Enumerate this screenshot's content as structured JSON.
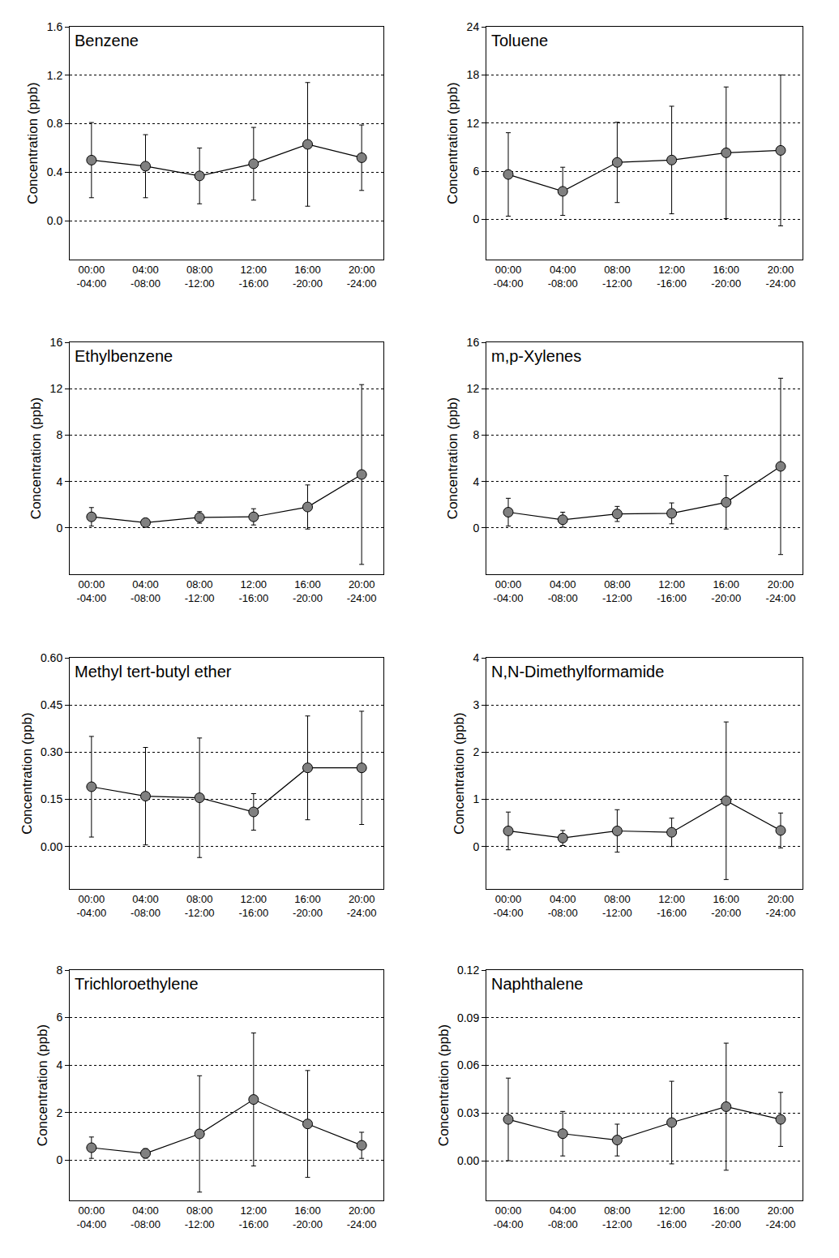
{
  "chart_data": [
    {
      "type": "line",
      "title": "Benzene",
      "y_label": "Concentration (ppb)",
      "categories": [
        "00:00\n-04:00",
        "04:00\n-08:00",
        "08:00\n-12:00",
        "12:00\n-16:00",
        "16:00\n-20:00",
        "20:00\n-24:00"
      ],
      "values": [
        0.5,
        0.45,
        0.37,
        0.47,
        0.63,
        0.52
      ],
      "errors": [
        0.31,
        0.26,
        0.23,
        0.3,
        0.51,
        0.27
      ],
      "ylim": [
        -0.32,
        1.6
      ],
      "yticks": [
        {
          "value": 0,
          "label": "0.0"
        },
        0.4,
        0.8,
        1.2,
        1.6
      ],
      "grid": true,
      "color": "#808080",
      "marker": "circle"
    },
    {
      "type": "line",
      "title": "Toluene",
      "y_label": "Concentration (ppb)",
      "categories": [
        "00:00\n-04:00",
        "04:00\n-08:00",
        "08:00\n-12:00",
        "12:00\n-16:00",
        "16:00\n-20:00",
        "20:00\n-24:00"
      ],
      "values": [
        5.6,
        3.5,
        7.1,
        7.4,
        8.3,
        8.6
      ],
      "errors": [
        5.2,
        3.0,
        5.0,
        6.7,
        8.2,
        9.4
      ],
      "ylim": [
        -5,
        24
      ],
      "yticks": [
        0,
        6,
        12,
        18,
        24
      ],
      "grid": true,
      "color": "#808080",
      "marker": "circle"
    },
    {
      "type": "line",
      "title": "Ethylbenzene",
      "y_label": "Concentration (ppb)",
      "categories": [
        "00:00\n-04:00",
        "04:00\n-08:00",
        "08:00\n-12:00",
        "12:00\n-16:00",
        "16:00\n-20:00",
        "20:00\n-24:00"
      ],
      "values": [
        0.95,
        0.45,
        0.9,
        0.95,
        1.8,
        4.6
      ],
      "errors": [
        0.8,
        0.35,
        0.5,
        0.7,
        1.9,
        7.75
      ],
      "ylim": [
        -4,
        16
      ],
      "yticks": [
        0,
        4,
        8,
        12,
        16
      ],
      "grid": true,
      "color": "#808080",
      "marker": "circle"
    },
    {
      "type": "line",
      "title": "m,p-Xylenes",
      "y_label": "Concentration (ppb)",
      "categories": [
        "00:00\n-04:00",
        "04:00\n-08:00",
        "08:00\n-12:00",
        "12:00\n-16:00",
        "16:00\n-20:00",
        "20:00\n-24:00"
      ],
      "values": [
        1.35,
        0.7,
        1.2,
        1.25,
        2.2,
        5.3
      ],
      "errors": [
        1.2,
        0.65,
        0.65,
        0.9,
        2.3,
        7.6
      ],
      "ylim": [
        -4,
        16
      ],
      "yticks": [
        0,
        4,
        8,
        12,
        16
      ],
      "grid": true,
      "color": "#808080",
      "marker": "circle"
    },
    {
      "type": "line",
      "title": "Methyl tert-butyl ether",
      "y_label": "Concentration (ppb)",
      "categories": [
        "00:00\n-04:00",
        "04:00\n-08:00",
        "08:00\n-12:00",
        "12:00\n-16:00",
        "16:00\n-20:00",
        "20:00\n-24:00"
      ],
      "values": [
        0.19,
        0.16,
        0.155,
        0.11,
        0.25,
        0.25
      ],
      "errors": [
        0.16,
        0.155,
        0.19,
        0.058,
        0.165,
        0.18
      ],
      "ylim": [
        -0.135,
        0.6
      ],
      "yticks": [
        {
          "value": 0,
          "label": "0.00"
        },
        0.15,
        {
          "value": 0.3,
          "label": "0.30"
        },
        0.45,
        {
          "value": 0.6,
          "label": "0.60"
        }
      ],
      "grid": true,
      "color": "#808080",
      "marker": "circle"
    },
    {
      "type": "line",
      "title": "N,N-Dimethylformamide",
      "y_label": "Concentration (ppb)",
      "categories": [
        "00:00\n-04:00",
        "04:00\n-08:00",
        "08:00\n-12:00",
        "12:00\n-16:00",
        "16:00\n-20:00",
        "20:00\n-24:00"
      ],
      "values": [
        0.33,
        0.18,
        0.33,
        0.3,
        0.97,
        0.34
      ],
      "errors": [
        0.4,
        0.16,
        0.45,
        0.3,
        1.67,
        0.37
      ],
      "ylim": [
        -0.9,
        4
      ],
      "yticks": [
        0,
        1,
        2,
        3,
        4
      ],
      "grid": true,
      "color": "#808080",
      "marker": "circle"
    },
    {
      "type": "line",
      "title": "Trichloroethylene",
      "y_label": "Concentration (ppb)",
      "categories": [
        "00:00\n-04:00",
        "04:00\n-08:00",
        "08:00\n-12:00",
        "12:00\n-16:00",
        "16:00\n-20:00",
        "20:00\n-24:00"
      ],
      "values": [
        0.52,
        0.28,
        1.1,
        2.55,
        1.52,
        0.62
      ],
      "errors": [
        0.45,
        0.2,
        2.45,
        2.8,
        2.25,
        0.55
      ],
      "ylim": [
        -1.7,
        8
      ],
      "yticks": [
        0,
        2,
        4,
        6,
        8
      ],
      "grid": true,
      "color": "#808080",
      "marker": "circle"
    },
    {
      "type": "line",
      "title": "Naphthalene",
      "y_label": "Concentration (ppb)",
      "categories": [
        "00:00\n-04:00",
        "04:00\n-08:00",
        "08:00\n-12:00",
        "12:00\n-16:00",
        "16:00\n-20:00",
        "20:00\n-24:00"
      ],
      "values": [
        0.026,
        0.017,
        0.013,
        0.024,
        0.034,
        0.026
      ],
      "errors": [
        0.026,
        0.014,
        0.01,
        0.026,
        0.04,
        0.017
      ],
      "ylim": [
        -0.025,
        0.12
      ],
      "yticks": [
        {
          "value": 0,
          "label": "0.00"
        },
        0.03,
        0.06,
        0.09,
        0.12
      ],
      "grid": true,
      "color": "#808080",
      "marker": "circle"
    }
  ]
}
